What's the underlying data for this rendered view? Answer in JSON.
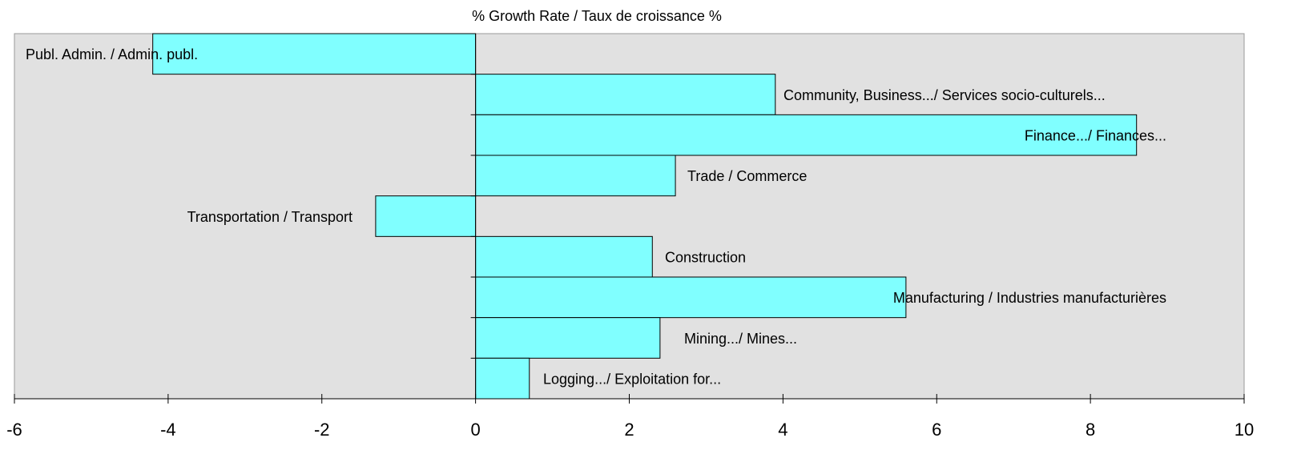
{
  "chart_data": {
    "type": "bar",
    "orientation": "horizontal",
    "title": "% Growth Rate /  Taux de croissance %",
    "categories": [
      "Publ. Admin. / Admin. publ.",
      "Community, Business.../ Services socio-culturels...",
      "Finance.../ Finances...",
      "Trade / Commerce",
      "Transportation / Transport",
      "Construction",
      "Manufacturing / Industries manufacturières",
      "Mining.../ Mines...",
      "Logging.../ Exploitation for..."
    ],
    "values": [
      -4.2,
      3.9,
      8.6,
      2.6,
      -1.3,
      2.3,
      5.6,
      2.4,
      0.7
    ],
    "color": "#80ffff",
    "xlim": [
      -6,
      10
    ],
    "xticks": [
      -6,
      -4,
      -2,
      0,
      2,
      4,
      6,
      8,
      10
    ],
    "grid": false
  }
}
